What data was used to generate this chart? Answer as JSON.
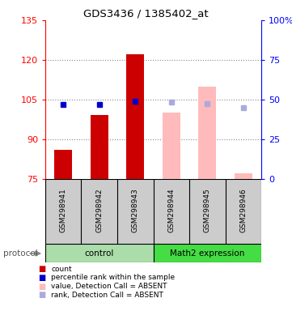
{
  "title": "GDS3436 / 1385402_at",
  "samples": [
    "GSM298941",
    "GSM298942",
    "GSM298943",
    "GSM298944",
    "GSM298945",
    "GSM298946"
  ],
  "bar_bottom": 75,
  "ylim_left": [
    75,
    135
  ],
  "ylim_right": [
    0,
    100
  ],
  "yticks_left": [
    75,
    90,
    105,
    120,
    135
  ],
  "yticks_right": [
    0,
    25,
    50,
    75,
    100
  ],
  "ytick_labels_right": [
    "0",
    "25",
    "50",
    "75",
    "100%"
  ],
  "count_values": [
    86,
    99,
    122,
    null,
    null,
    null
  ],
  "percentile_values": [
    103,
    103,
    104.5,
    null,
    null,
    null
  ],
  "absent_bar_values": [
    null,
    null,
    null,
    100,
    110,
    77
  ],
  "absent_rank_values": [
    null,
    null,
    null,
    104,
    103.5,
    102
  ],
  "count_color": "#cc0000",
  "percentile_color": "#0000cc",
  "absent_bar_color": "#ffbbbb",
  "absent_rank_color": "#aaaadd",
  "control_bg_color": "#aaddaa",
  "math2_bg_color": "#44dd44",
  "sample_bg_color": "#cccccc",
  "grid_color": "#888888",
  "protocol_label": "protocol",
  "control_label": "control",
  "absent_label": "Math2 expression",
  "legend_items": [
    {
      "label": "count",
      "color": "#cc0000"
    },
    {
      "label": "percentile rank within the sample",
      "color": "#0000cc"
    },
    {
      "label": "value, Detection Call = ABSENT",
      "color": "#ffbbbb"
    },
    {
      "label": "rank, Detection Call = ABSENT",
      "color": "#aaaadd"
    }
  ],
  "bar_width": 0.5
}
